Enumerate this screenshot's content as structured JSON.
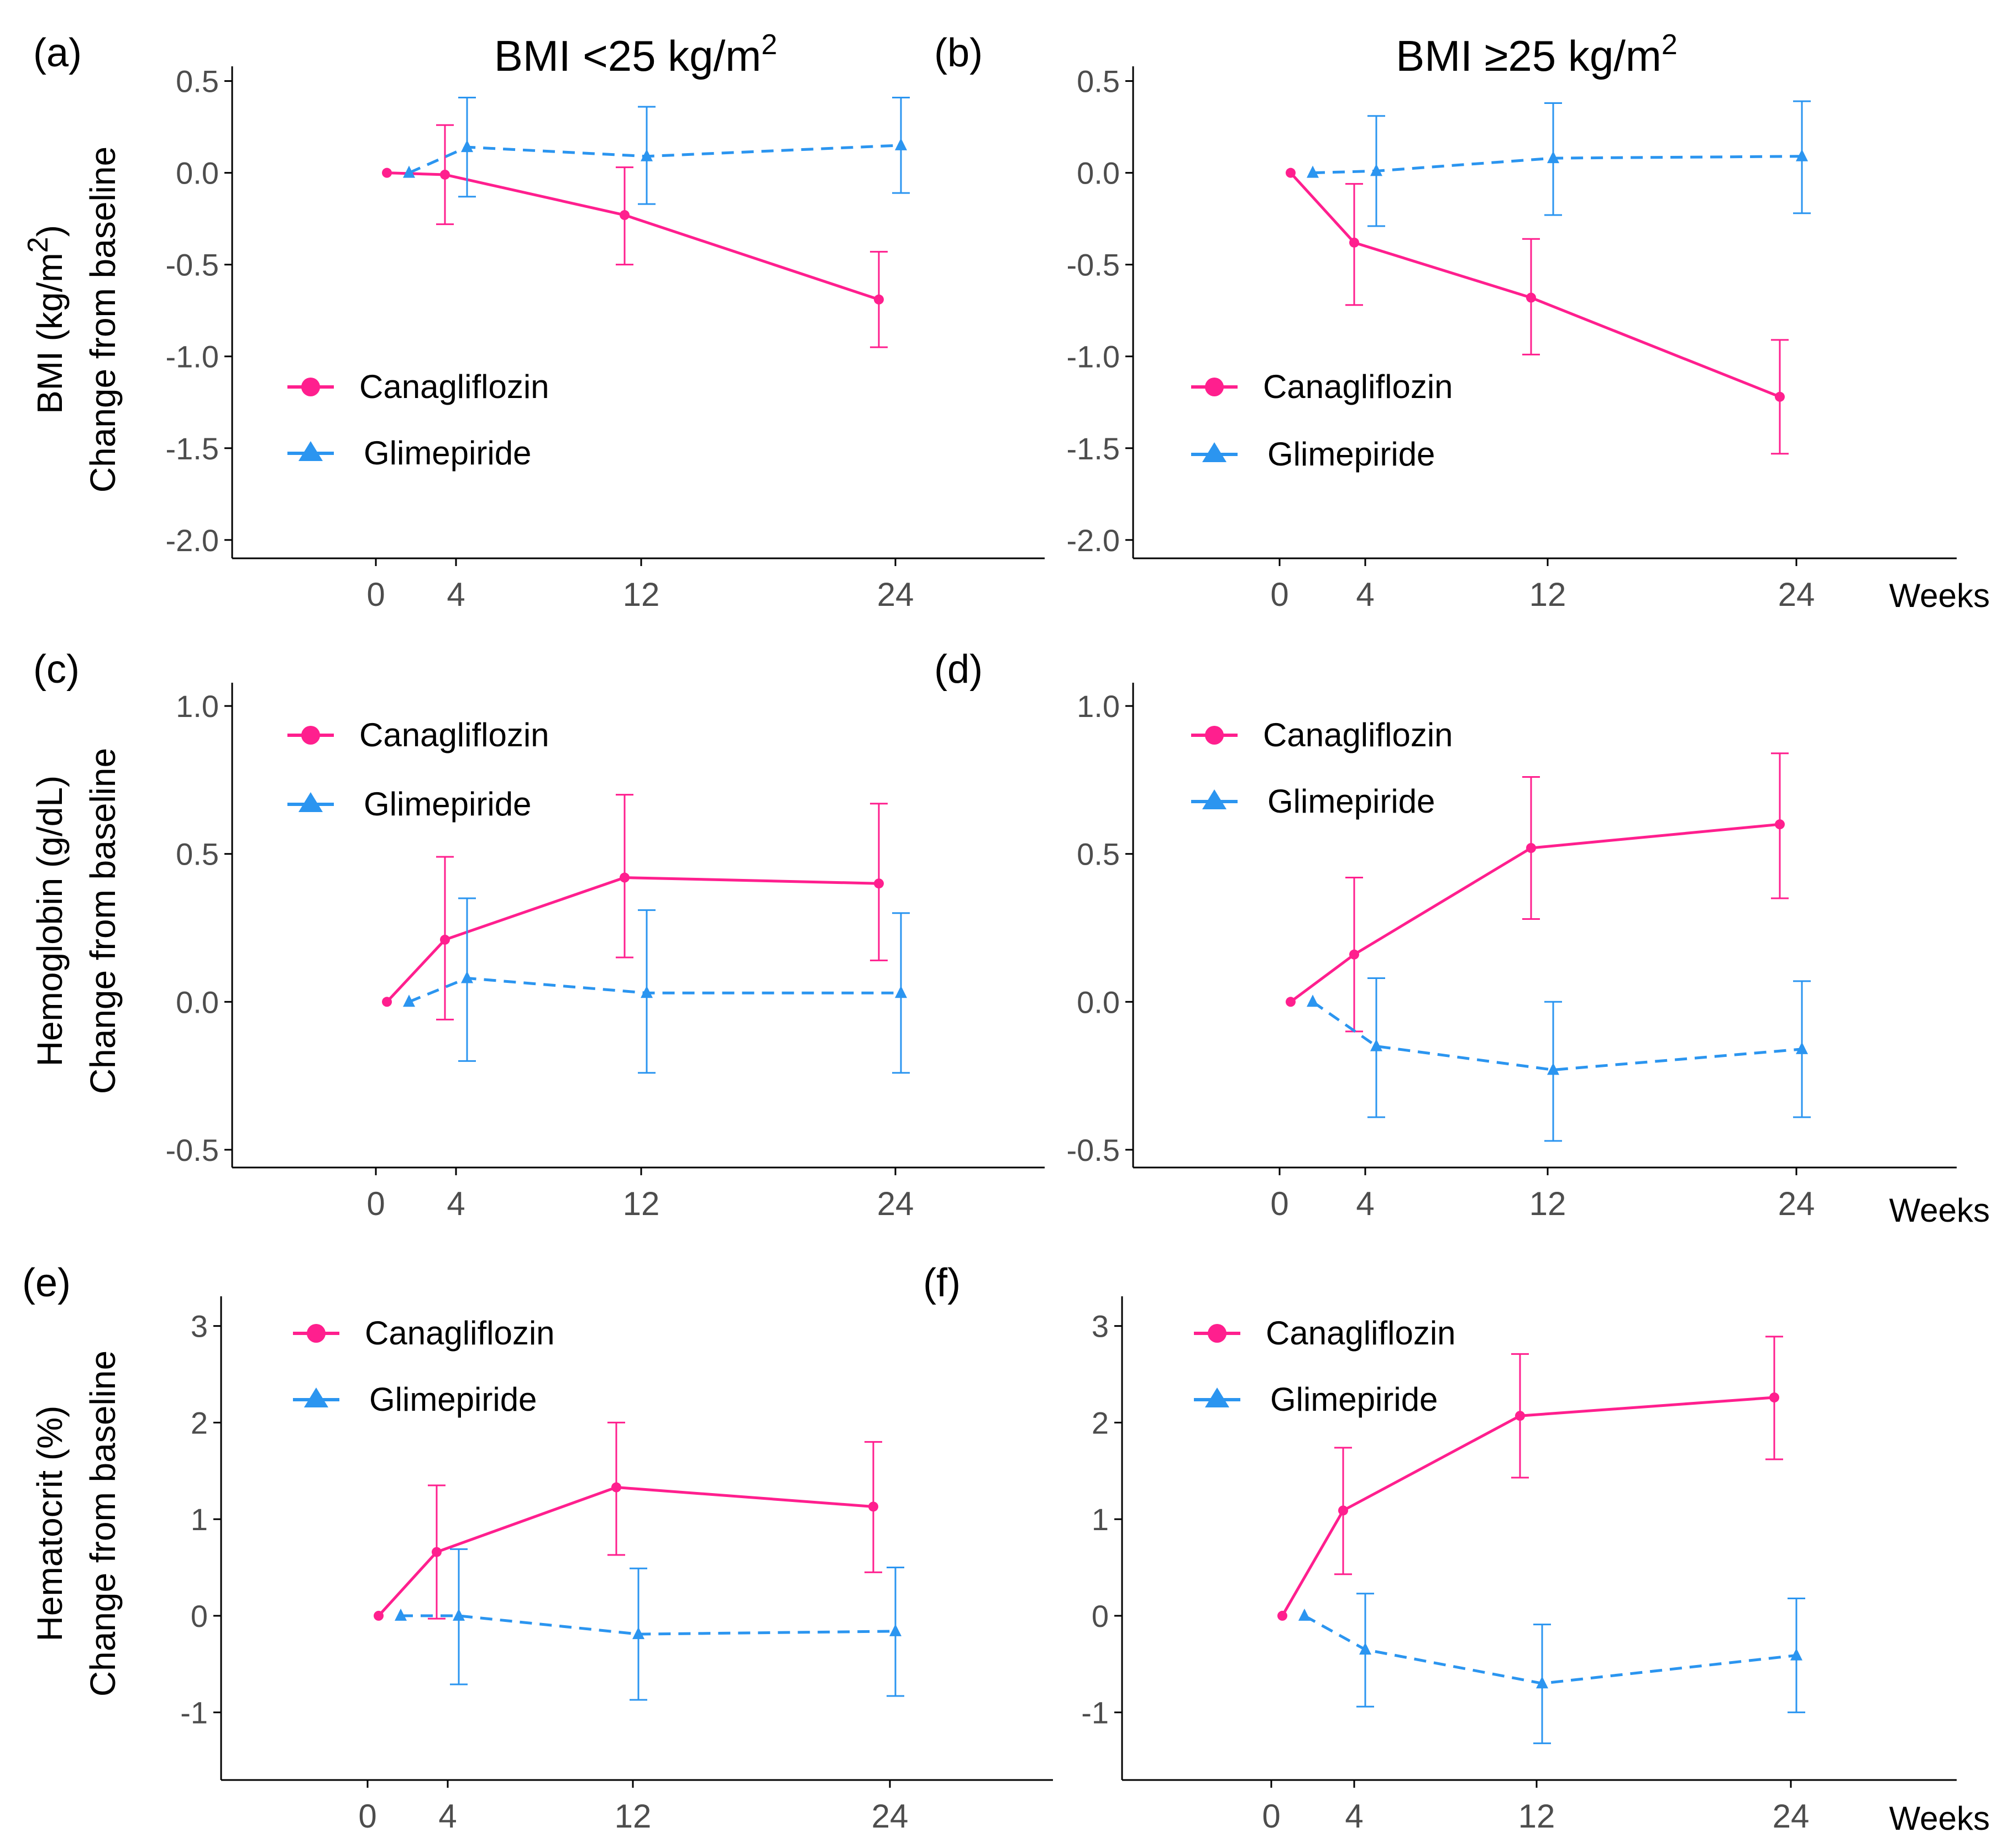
{
  "column_titles": [
    {
      "pre": "BMI <25 kg/m",
      "sup": "2"
    },
    {
      "pre": "BMI ≥25 kg/m",
      "sup": "2"
    }
  ],
  "row_ylabels": [
    {
      "line1_pre": "BMI (kg/m",
      "line1_sup": "2",
      "line1_post": ")",
      "line2": "Change from baseline"
    },
    {
      "line1_pre": "Hemoglobin (g/dL)",
      "line1_sup": "",
      "line1_post": "",
      "line2": "Change from baseline"
    },
    {
      "line1_pre": "Hematocrit (%)",
      "line1_sup": "",
      "line1_post": "",
      "line2": "Change from baseline"
    }
  ],
  "weeks_label": "Weeks",
  "legend": {
    "canagliflozin": "Canagliflozin",
    "glimepiride": "Glimepiride"
  },
  "colors": {
    "canagliflozin": "#ff1f8e",
    "glimepiride": "#2b95f0",
    "axis": "#000000",
    "tick_text": "#4d4d4d"
  },
  "chart_data": [
    {
      "panel": "(a)",
      "type": "line",
      "title": "BMI <25 kg/m2",
      "ylabel": "BMI (kg/m2) Change from baseline",
      "xlabel": "Weeks",
      "x_ticks": [
        0,
        4,
        12,
        24
      ],
      "x_tick_labels": [
        "0",
        "4",
        "12",
        "24"
      ],
      "ylim": [
        -2.1,
        0.55
      ],
      "y_ticks": [
        0.5,
        0.0,
        -0.5,
        -1.0,
        -1.5,
        -2.0
      ],
      "y_tick_labels": [
        "0.5",
        "0.0",
        "-0.5",
        "-1.0",
        "-1.5",
        "-2.0"
      ],
      "series": [
        {
          "name": "Canagliflozin",
          "x": [
            0,
            4,
            12,
            24
          ],
          "values": [
            0.0,
            -0.01,
            -0.23,
            -0.69
          ],
          "lower": [
            0.0,
            -0.28,
            -0.5,
            -0.95
          ],
          "upper": [
            0.0,
            0.26,
            0.03,
            -0.43
          ]
        },
        {
          "name": "Glimepiride",
          "x": [
            0,
            4,
            12,
            24
          ],
          "values": [
            0.0,
            0.14,
            0.09,
            0.15
          ],
          "lower": [
            0.0,
            -0.13,
            -0.17,
            -0.11
          ],
          "upper": [
            0.0,
            0.41,
            0.36,
            0.41
          ]
        }
      ],
      "legend_position": "middle-left"
    },
    {
      "panel": "(b)",
      "type": "line",
      "title": "BMI ≥25 kg/m2",
      "ylabel": "",
      "xlabel": "Weeks",
      "x_ticks": [
        0,
        4,
        12,
        24
      ],
      "x_tick_labels": [
        "0",
        "4",
        "12",
        "24"
      ],
      "ylim": [
        -2.1,
        0.55
      ],
      "y_ticks": [
        0.5,
        0.0,
        -0.5,
        -1.0,
        -1.5,
        -2.0
      ],
      "y_tick_labels": [
        "0.5",
        "0.0",
        "-0.5",
        "-1.0",
        "-1.5",
        "-2.0"
      ],
      "series": [
        {
          "name": "Canagliflozin",
          "x": [
            0,
            4,
            12,
            24
          ],
          "values": [
            0.0,
            -0.38,
            -0.68,
            -1.22
          ],
          "lower": [
            0.0,
            -0.72,
            -0.99,
            -1.53
          ],
          "upper": [
            0.0,
            -0.06,
            -0.36,
            -0.91
          ]
        },
        {
          "name": "Glimepiride",
          "x": [
            0,
            4,
            12,
            24
          ],
          "values": [
            0.0,
            0.01,
            0.08,
            0.09
          ],
          "lower": [
            0.0,
            -0.29,
            -0.23,
            -0.22
          ],
          "upper": [
            0.0,
            0.31,
            0.38,
            0.39
          ]
        }
      ],
      "legend_position": "middle-left"
    },
    {
      "panel": "(c)",
      "type": "line",
      "title": "",
      "ylabel": "Hemoglobin (g/dL) Change from baseline",
      "xlabel": "Weeks",
      "x_ticks": [
        0,
        4,
        12,
        24
      ],
      "x_tick_labels": [
        "0",
        "4",
        "12",
        "24"
      ],
      "ylim": [
        -0.56,
        1.06
      ],
      "y_ticks": [
        1.0,
        0.5,
        0.0,
        -0.5
      ],
      "y_tick_labels": [
        "1.0",
        "0.5",
        "0.0",
        "-0.5"
      ],
      "series": [
        {
          "name": "Canagliflozin",
          "x": [
            0,
            4,
            12,
            24
          ],
          "values": [
            0.0,
            0.21,
            0.42,
            0.4
          ],
          "lower": [
            0.0,
            -0.06,
            0.15,
            0.14
          ],
          "upper": [
            0.0,
            0.49,
            0.7,
            0.67
          ]
        },
        {
          "name": "Glimepiride",
          "x": [
            0,
            4,
            12,
            24
          ],
          "values": [
            0.0,
            0.08,
            0.03,
            0.03
          ],
          "lower": [
            0.0,
            -0.2,
            -0.24,
            -0.24
          ],
          "upper": [
            0.0,
            0.35,
            0.31,
            0.3
          ]
        }
      ],
      "legend_position": "top-left"
    },
    {
      "panel": "(d)",
      "type": "line",
      "title": "",
      "ylabel": "",
      "xlabel": "Weeks",
      "x_ticks": [
        0,
        4,
        12,
        24
      ],
      "x_tick_labels": [
        "0",
        "4",
        "12",
        "24"
      ],
      "ylim": [
        -0.56,
        1.06
      ],
      "y_ticks": [
        1.0,
        0.5,
        0.0,
        -0.5
      ],
      "y_tick_labels": [
        "1.0",
        "0.5",
        "0.0",
        "-0.5"
      ],
      "series": [
        {
          "name": "Canagliflozin",
          "x": [
            0,
            4,
            12,
            24
          ],
          "values": [
            0.0,
            0.16,
            0.52,
            0.6
          ],
          "lower": [
            0.0,
            -0.1,
            0.28,
            0.35
          ],
          "upper": [
            0.0,
            0.42,
            0.76,
            0.84
          ]
        },
        {
          "name": "Glimepiride",
          "x": [
            0,
            4,
            12,
            24
          ],
          "values": [
            0.0,
            -0.15,
            -0.23,
            -0.16
          ],
          "lower": [
            0.0,
            -0.39,
            -0.47,
            -0.39
          ],
          "upper": [
            0.0,
            0.08,
            0.0,
            0.07
          ]
        }
      ],
      "legend_position": "top-left"
    },
    {
      "panel": "(e)",
      "type": "line",
      "title": "",
      "ylabel": "Hematocrit (%) Change from baseline",
      "xlabel": "Weeks",
      "x_ticks": [
        0,
        4,
        12,
        24
      ],
      "x_tick_labels": [
        "0",
        "4",
        "12",
        "24"
      ],
      "ylim": [
        -1.7,
        3.25
      ],
      "y_ticks": [
        3,
        2,
        1,
        0,
        -1
      ],
      "y_tick_labels": [
        "3",
        "2",
        "1",
        "0",
        "-1"
      ],
      "series": [
        {
          "name": "Canagliflozin",
          "x": [
            0,
            4,
            12,
            24
          ],
          "values": [
            0.0,
            0.66,
            1.33,
            1.13
          ],
          "lower": [
            0.0,
            -0.03,
            0.63,
            0.45
          ],
          "upper": [
            0.0,
            1.35,
            2.0,
            1.8
          ]
        },
        {
          "name": "Glimepiride",
          "x": [
            0,
            4,
            12,
            24
          ],
          "values": [
            0.0,
            0.0,
            -0.19,
            -0.16
          ],
          "lower": [
            0.0,
            -0.71,
            -0.87,
            -0.83
          ],
          "upper": [
            0.0,
            0.69,
            0.49,
            0.5
          ]
        }
      ],
      "legend_position": "top-left"
    },
    {
      "panel": "(f)",
      "type": "line",
      "title": "",
      "ylabel": "",
      "xlabel": "Weeks",
      "x_ticks": [
        0,
        4,
        12,
        24
      ],
      "x_tick_labels": [
        "0",
        "4",
        "12",
        "24"
      ],
      "ylim": [
        -1.7,
        3.25
      ],
      "y_ticks": [
        3,
        2,
        1,
        0,
        -1
      ],
      "y_tick_labels": [
        "3",
        "2",
        "1",
        "0",
        "-1"
      ],
      "series": [
        {
          "name": "Canagliflozin",
          "x": [
            0,
            4,
            12,
            24
          ],
          "values": [
            0.0,
            1.09,
            2.07,
            2.26
          ],
          "lower": [
            0.0,
            0.43,
            1.43,
            1.62
          ],
          "upper": [
            0.0,
            1.74,
            2.71,
            2.89
          ]
        },
        {
          "name": "Glimepiride",
          "x": [
            0,
            4,
            12,
            24
          ],
          "values": [
            0.0,
            -0.35,
            -0.7,
            -0.41
          ],
          "lower": [
            0.0,
            -0.94,
            -1.32,
            -1.0
          ],
          "upper": [
            0.0,
            0.23,
            -0.09,
            0.18
          ]
        }
      ],
      "legend_position": "top-left"
    }
  ]
}
